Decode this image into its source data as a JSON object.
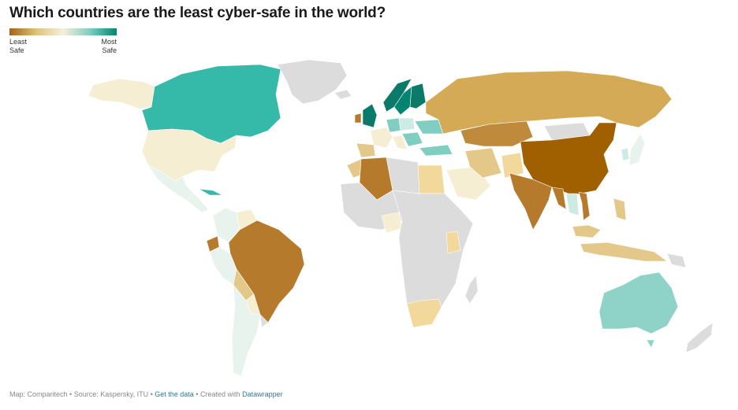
{
  "title": "Which countries are the least cyber-safe in the world?",
  "legend": {
    "left_line1": "Least",
    "left_line2": "Safe",
    "right_line1": "Most",
    "right_line2": "Safe",
    "gradient": [
      "#a6611a",
      "#dfc27d",
      "#f5f0d8",
      "#80cdc1",
      "#018571"
    ]
  },
  "colors": {
    "no_data": "#dcdcdc",
    "ocean": "#ffffff",
    "border": "#ffffff"
  },
  "footer": {
    "credit": "Map: Comparitech",
    "source": "Source: Kaspersky, ITU",
    "get_data": "Get the data",
    "created_with": "Created with",
    "tool": "Datawrapper",
    "sep": "•"
  }
}
